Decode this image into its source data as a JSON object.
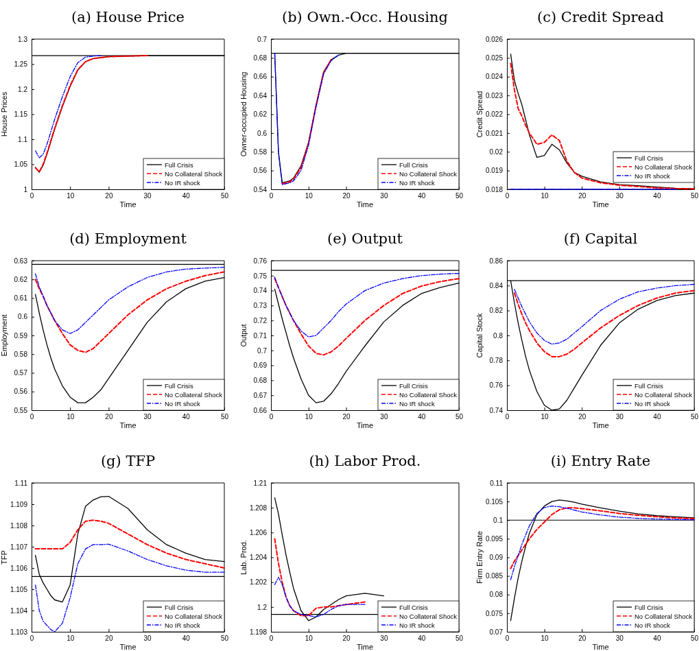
{
  "chart_data": [
    {
      "type": "line",
      "title": "(a) House Price",
      "xlabel": "Time",
      "ylabel": "House Prices",
      "xlim": [
        0,
        50
      ],
      "xticks": [
        0,
        10,
        20,
        30,
        40,
        50
      ],
      "ylim": [
        1,
        1.3
      ],
      "yticks": [
        1,
        1.05,
        1.1,
        1.15,
        1.2,
        1.25,
        1.3
      ],
      "legend": "bottom right",
      "ref_lines": [
        {
          "axis": "y",
          "value": 1.267,
          "color": "#000000"
        }
      ],
      "x": [
        1,
        2,
        3,
        4,
        5,
        6,
        8,
        10,
        12,
        14,
        16,
        18,
        20,
        25,
        30,
        35,
        40,
        45,
        50
      ],
      "series": [
        {
          "name": "Full Crisis",
          "color": "#000000",
          "line_style": "solid",
          "values": [
            1.044,
            1.034,
            1.048,
            1.07,
            1.095,
            1.12,
            1.165,
            1.205,
            1.238,
            1.255,
            1.261,
            1.263,
            1.265,
            1.266,
            1.267,
            1.267,
            1.267,
            1.267,
            1.267
          ]
        },
        {
          "name": "No Collateral Shock",
          "color": "#ff0000",
          "line_style": "dashed",
          "values": [
            1.043,
            1.035,
            1.05,
            1.072,
            1.097,
            1.122,
            1.167,
            1.207,
            1.239,
            1.255,
            1.261,
            1.263,
            1.265,
            1.266,
            1.267,
            null,
            null,
            null,
            null
          ]
        },
        {
          "name": "No IR shock",
          "color": "#0000ff",
          "line_style": "dotted",
          "values": [
            1.077,
            1.063,
            1.07,
            1.09,
            1.115,
            1.14,
            1.185,
            1.225,
            1.253,
            1.264,
            1.266,
            1.267,
            null,
            null,
            null,
            null,
            null,
            null,
            null
          ]
        }
      ]
    },
    {
      "type": "line",
      "title": "(b) Own.-Occ. Housing",
      "xlabel": "Time",
      "ylabel": "Owner-occupied Housing",
      "xlim": [
        0,
        50
      ],
      "xticks": [
        0,
        10,
        20,
        30,
        40,
        50
      ],
      "ylim": [
        0.54,
        0.7
      ],
      "yticks": [
        0.54,
        0.56,
        0.58,
        0.6,
        0.62,
        0.64,
        0.66,
        0.68,
        0.7
      ],
      "legend": "bottom right",
      "ref_lines": [
        {
          "axis": "y",
          "value": 0.685,
          "color": "#000000"
        }
      ],
      "x": [
        1,
        2,
        3,
        4,
        5,
        6,
        8,
        10,
        12,
        14,
        16,
        18,
        20,
        25,
        30,
        35,
        40,
        45,
        50
      ],
      "series": [
        {
          "name": "Full Crisis",
          "color": "#000000",
          "line_style": "solid",
          "values": [
            0.685,
            0.58,
            0.547,
            0.548,
            0.549,
            0.552,
            0.565,
            0.59,
            0.63,
            0.665,
            0.678,
            0.683,
            0.685,
            0.685,
            0.685,
            0.685,
            0.685,
            0.685,
            0.685
          ]
        },
        {
          "name": "No Collateral Shock",
          "color": "#ff0000",
          "line_style": "dashed",
          "values": [
            null,
            null,
            0.546,
            0.547,
            0.548,
            0.551,
            0.563,
            0.589,
            0.629,
            0.664,
            0.678,
            null,
            null,
            null,
            null,
            null,
            null,
            null,
            null
          ]
        },
        {
          "name": "No IR shock",
          "color": "#0000ff",
          "line_style": "dotted",
          "values": [
            0.685,
            0.578,
            0.545,
            0.546,
            0.547,
            0.549,
            0.56,
            0.587,
            0.628,
            0.663,
            0.677,
            0.683,
            null,
            null,
            null,
            null,
            null,
            null,
            null
          ]
        }
      ]
    },
    {
      "type": "line",
      "title": "(c) Credit Spread",
      "xlabel": "Time",
      "ylabel": "Credit Spread",
      "xlim": [
        0,
        50
      ],
      "xticks": [
        0,
        10,
        20,
        30,
        40,
        50
      ],
      "ylim": [
        0.018,
        0.026
      ],
      "yticks": [
        0.018,
        0.019,
        0.02,
        0.021,
        0.022,
        0.023,
        0.024,
        0.025,
        0.026
      ],
      "legend": "bottom right",
      "ref_lines": [
        {
          "axis": "y",
          "value": 0.018,
          "color": "#000000"
        }
      ],
      "x": [
        1,
        2,
        3,
        4,
        5,
        6,
        8,
        10,
        12,
        14,
        16,
        18,
        20,
        25,
        30,
        35,
        40,
        45,
        50
      ],
      "series": [
        {
          "name": "Full Crisis",
          "color": "#000000",
          "line_style": "solid",
          "values": [
            0.0252,
            0.0238,
            0.0231,
            0.0225,
            0.0217,
            0.0209,
            0.0197,
            0.0198,
            0.0204,
            0.0201,
            0.0194,
            0.0189,
            0.0187,
            0.0184,
            0.01825,
            0.0182,
            0.01812,
            0.01806,
            0.01803
          ]
        },
        {
          "name": "No Collateral Shock",
          "color": "#ff0000",
          "line_style": "dashed",
          "values": [
            0.0247,
            0.0233,
            0.0223,
            0.0219,
            0.0214,
            0.021,
            0.0204,
            0.0205,
            0.0209,
            0.0206,
            0.0195,
            0.0189,
            0.0186,
            0.01835,
            0.01822,
            0.01815,
            0.01808,
            0.01804,
            0.01802
          ]
        },
        {
          "name": "No IR shock",
          "color": "#0000ff",
          "line_style": "dotted",
          "values": [
            0.018,
            0.018,
            0.018,
            0.018,
            0.018,
            0.018,
            0.018,
            0.018,
            0.018,
            0.018,
            0.018,
            0.018,
            0.018,
            0.018,
            0.018,
            0.018,
            0.018,
            0.018,
            null
          ]
        }
      ]
    },
    {
      "type": "line",
      "title": "(d) Employment",
      "xlabel": "Time",
      "ylabel": "Employment",
      "xlim": [
        0,
        50
      ],
      "xticks": [
        0,
        10,
        20,
        30,
        40,
        50
      ],
      "ylim": [
        0.55,
        0.63
      ],
      "yticks": [
        0.55,
        0.56,
        0.57,
        0.58,
        0.59,
        0.6,
        0.61,
        0.62,
        0.63
      ],
      "legend": "bottom right",
      "ref_lines": [
        {
          "axis": "y",
          "value": 0.628,
          "color": "#000000"
        }
      ],
      "x": [
        1,
        2,
        3,
        4,
        5,
        6,
        8,
        10,
        12,
        14,
        16,
        18,
        20,
        25,
        30,
        35,
        40,
        45,
        50
      ],
      "series": [
        {
          "name": "Full Crisis",
          "color": "#000000",
          "line_style": "solid",
          "values": [
            0.612,
            0.602,
            0.593,
            0.585,
            0.578,
            0.572,
            0.563,
            0.557,
            0.554,
            0.554,
            0.557,
            0.561,
            0.567,
            0.582,
            0.597,
            0.608,
            0.615,
            0.619,
            0.621
          ]
        },
        {
          "name": "No Collateral Shock",
          "color": "#ff0000",
          "line_style": "dashed",
          "values": [
            0.62,
            0.615,
            0.611,
            0.606,
            0.602,
            0.598,
            0.591,
            0.585,
            0.582,
            0.581,
            0.583,
            0.587,
            0.591,
            0.601,
            0.609,
            0.615,
            0.619,
            0.622,
            0.624
          ]
        },
        {
          "name": "No IR shock",
          "color": "#0000ff",
          "line_style": "dotted",
          "values": [
            0.623,
            0.616,
            0.611,
            0.606,
            0.602,
            0.598,
            0.593,
            0.591,
            0.593,
            0.597,
            0.601,
            0.605,
            0.609,
            0.616,
            0.621,
            0.624,
            0.6255,
            0.626,
            0.6265
          ]
        }
      ]
    },
    {
      "type": "line",
      "title": "(e) Output",
      "xlabel": "Time",
      "ylabel": "Output",
      "xlim": [
        0,
        50
      ],
      "xticks": [
        0,
        10,
        20,
        30,
        40,
        50
      ],
      "ylim": [
        0.66,
        0.76
      ],
      "yticks": [
        0.66,
        0.67,
        0.68,
        0.69,
        0.7,
        0.71,
        0.72,
        0.73,
        0.74,
        0.75,
        0.76
      ],
      "legend": "bottom right",
      "ref_lines": [
        {
          "axis": "y",
          "value": 0.7535,
          "color": "#000000"
        }
      ],
      "x": [
        1,
        2,
        3,
        4,
        5,
        6,
        8,
        10,
        12,
        14,
        16,
        18,
        20,
        25,
        30,
        35,
        40,
        45,
        50
      ],
      "series": [
        {
          "name": "Full Crisis",
          "color": "#000000",
          "line_style": "solid",
          "values": [
            0.741,
            0.731,
            0.721,
            0.712,
            0.703,
            0.695,
            0.681,
            0.67,
            0.665,
            0.666,
            0.671,
            0.678,
            0.686,
            0.703,
            0.719,
            0.73,
            0.738,
            0.742,
            0.745
          ]
        },
        {
          "name": "No Collateral Shock",
          "color": "#ff0000",
          "line_style": "dashed",
          "values": [
            0.748,
            0.742,
            0.736,
            0.73,
            0.725,
            0.72,
            0.711,
            0.703,
            0.698,
            0.697,
            0.699,
            0.703,
            0.708,
            0.72,
            0.73,
            0.738,
            0.743,
            0.746,
            0.748
          ]
        },
        {
          "name": "No IR shock",
          "color": "#0000ff",
          "line_style": "dotted",
          "values": [
            0.749,
            0.742,
            0.736,
            0.73,
            0.725,
            0.72,
            0.713,
            0.709,
            0.71,
            0.715,
            0.72,
            0.726,
            0.731,
            0.74,
            0.745,
            0.748,
            0.75,
            0.751,
            0.7515
          ]
        }
      ]
    },
    {
      "type": "line",
      "title": "(f) Capital",
      "xlabel": "Time",
      "ylabel": "Capital Stock",
      "xlim": [
        0,
        50
      ],
      "xticks": [
        0,
        10,
        20,
        30,
        40,
        50
      ],
      "ylim": [
        0.74,
        0.86
      ],
      "yticks": [
        0.74,
        0.76,
        0.78,
        0.8,
        0.82,
        0.84,
        0.86
      ],
      "legend": "bottom right",
      "ref_lines": [
        {
          "axis": "y",
          "value": 0.844,
          "color": "#000000"
        }
      ],
      "x": [
        1,
        2,
        3,
        4,
        5,
        6,
        8,
        10,
        12,
        14,
        16,
        18,
        20,
        25,
        30,
        35,
        40,
        45,
        50
      ],
      "series": [
        {
          "name": "Full Crisis",
          "color": "#000000",
          "line_style": "solid",
          "values": [
            0.844,
            0.826,
            0.81,
            0.796,
            0.783,
            0.772,
            0.755,
            0.744,
            0.74,
            0.741,
            0.748,
            0.758,
            0.768,
            0.792,
            0.81,
            0.821,
            0.828,
            0.832,
            0.834
          ]
        },
        {
          "name": "No Collateral Shock",
          "color": "#ff0000",
          "line_style": "dashed",
          "values": [
            null,
            0.834,
            0.825,
            0.817,
            0.81,
            0.804,
            0.794,
            0.787,
            0.783,
            0.783,
            0.785,
            0.789,
            0.794,
            0.806,
            0.816,
            0.824,
            0.83,
            0.834,
            0.836
          ]
        },
        {
          "name": "No IR shock",
          "color": "#0000ff",
          "line_style": "dotted",
          "values": [
            null,
            0.837,
            0.83,
            0.823,
            0.817,
            0.811,
            0.802,
            0.796,
            0.793,
            0.794,
            0.797,
            0.802,
            0.807,
            0.82,
            0.829,
            0.835,
            0.838,
            0.84,
            0.841
          ]
        }
      ]
    },
    {
      "type": "line",
      "title": "(g) TFP",
      "xlabel": "Time",
      "ylabel": "TFP",
      "xlim": [
        0,
        50
      ],
      "xticks": [
        0,
        10,
        20,
        30,
        40,
        50
      ],
      "ylim": [
        1.103,
        1.11
      ],
      "yticks": [
        1.103,
        1.104,
        1.105,
        1.106,
        1.107,
        1.108,
        1.109,
        1.11
      ],
      "legend": "bottom right",
      "ref_lines": [
        {
          "axis": "y",
          "value": 1.1056,
          "color": "#000000"
        }
      ],
      "x": [
        1,
        2,
        3,
        4,
        5,
        6,
        8,
        10,
        12,
        14,
        16,
        18,
        20,
        25,
        30,
        35,
        40,
        45,
        50
      ],
      "series": [
        {
          "name": "Full Crisis",
          "color": "#000000",
          "line_style": "solid",
          "values": [
            1.1066,
            1.1057,
            1.1053,
            1.105,
            1.1047,
            1.1045,
            1.1044,
            1.1052,
            1.1076,
            1.1089,
            1.1092,
            1.10935,
            1.10937,
            1.1088,
            1.1078,
            1.1071,
            1.1067,
            1.1064,
            1.1063
          ]
        },
        {
          "name": "No Collateral Shock",
          "color": "#ff0000",
          "line_style": "dashed",
          "values": [
            1.1069,
            1.1069,
            1.1069,
            1.1069,
            1.1069,
            1.1069,
            1.1069,
            1.1072,
            1.1078,
            1.1082,
            1.10825,
            1.1082,
            1.1081,
            1.1076,
            1.1071,
            1.1067,
            1.1064,
            1.1062,
            1.106
          ]
        },
        {
          "name": "No IR shock",
          "color": "#0000ff",
          "line_style": "dotted",
          "values": [
            1.1052,
            1.104,
            1.1035,
            1.1033,
            1.1031,
            1.103,
            1.1034,
            1.1046,
            1.1062,
            1.1069,
            1.1071,
            1.1071,
            1.10712,
            1.1068,
            1.1064,
            1.1061,
            1.1059,
            1.1058,
            1.1058
          ]
        }
      ]
    },
    {
      "type": "line",
      "title": "(h) Labor Prod.",
      "xlabel": "Time",
      "ylabel": "Lab. Prod.",
      "xlim": [
        0,
        50
      ],
      "xticks": [
        0,
        10,
        20,
        30,
        40,
        50
      ],
      "ylim": [
        1.198,
        1.21
      ],
      "yticks": [
        1.198,
        1.2,
        1.202,
        1.204,
        1.206,
        1.208,
        1.21
      ],
      "legend": "bottom right",
      "ref_lines": [
        {
          "axis": "y",
          "value": 1.1994,
          "color": "#000000"
        }
      ],
      "x": [
        1,
        2,
        3,
        4,
        5,
        6,
        8,
        10,
        12,
        14,
        16,
        18,
        20,
        25,
        30
      ],
      "series": [
        {
          "name": "Full Crisis",
          "color": "#000000",
          "line_style": "solid",
          "values": [
            1.2088,
            1.2075,
            1.2058,
            1.2042,
            1.2028,
            1.2015,
            1.1997,
            1.1989,
            1.1992,
            1.1998,
            1.2002,
            1.2006,
            1.2009,
            1.2011,
            1.2009
          ]
        },
        {
          "name": "No Collateral Shock",
          "color": "#ff0000",
          "line_style": "dashed",
          "values": [
            1.2055,
            1.2035,
            1.202,
            1.2008,
            1.2001,
            1.1997,
            1.1993,
            1.1993,
            1.1999,
            1.2,
            1.2,
            1.2001,
            1.2002,
            1.2004,
            null
          ]
        },
        {
          "name": "No IR shock",
          "color": "#0000ff",
          "line_style": "dotted",
          "values": [
            1.2018,
            1.2024,
            1.2018,
            1.2008,
            1.2001,
            1.1997,
            1.1994,
            1.1993,
            1.1992,
            1.1994,
            1.1998,
            1.2001,
            1.2002,
            1.2002,
            null
          ]
        }
      ]
    },
    {
      "type": "line",
      "title": "(i) Entry Rate",
      "xlabel": "Time",
      "ylabel": "Firm Entry Rate",
      "xlim": [
        0,
        50
      ],
      "xticks": [
        0,
        10,
        20,
        30,
        40,
        50
      ],
      "ylim": [
        0.07,
        0.11
      ],
      "yticks": [
        0.07,
        0.075,
        0.08,
        0.085,
        0.09,
        0.095,
        0.1,
        0.105,
        0.11
      ],
      "legend": "bottom right",
      "ref_lines": [
        {
          "axis": "y",
          "value": 0.1,
          "color": "#000000"
        }
      ],
      "x": [
        1,
        2,
        3,
        4,
        5,
        6,
        8,
        10,
        12,
        14,
        16,
        18,
        20,
        25,
        30,
        35,
        40,
        45,
        50
      ],
      "series": [
        {
          "name": "Full Crisis",
          "color": "#000000",
          "line_style": "solid",
          "values": [
            0.073,
            0.079,
            0.0845,
            0.089,
            0.093,
            0.0965,
            0.1015,
            0.1038,
            0.105,
            0.1054,
            0.1052,
            0.1048,
            0.1043,
            0.1033,
            0.1024,
            0.1017,
            0.1012,
            0.1009,
            0.1006
          ]
        },
        {
          "name": "No Collateral Shock",
          "color": "#ff0000",
          "line_style": "dashed",
          "values": [
            0.087,
            0.089,
            0.0905,
            0.092,
            0.0935,
            0.095,
            0.0975,
            0.0995,
            0.1015,
            0.1028,
            0.1033,
            0.1033,
            0.1031,
            0.1025,
            0.1018,
            0.1013,
            0.1009,
            0.1006,
            0.1004
          ]
        },
        {
          "name": "No IR shock",
          "color": "#0000ff",
          "line_style": "dotted",
          "values": [
            0.084,
            0.0875,
            0.0905,
            0.0935,
            0.096,
            0.0985,
            0.1018,
            0.1034,
            0.1038,
            0.1036,
            0.1032,
            0.1027,
            0.1022,
            0.1014,
            0.1008,
            0.1005,
            0.1003,
            0.1002,
            0.1001
          ]
        }
      ]
    }
  ]
}
